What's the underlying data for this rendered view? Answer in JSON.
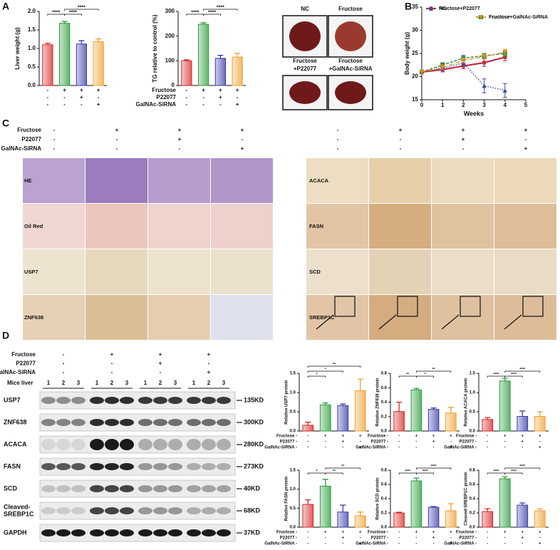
{
  "panel_labels": [
    "A",
    "B",
    "C",
    "D"
  ],
  "chart_data": [
    {
      "type": "bar",
      "y_label": "Liver weight (g)",
      "colors": [
        "#d62728",
        "#2a9a3a",
        "#3a3aa8",
        "#f0a030"
      ],
      "values": [
        1.1,
        1.68,
        1.12,
        1.18
      ],
      "errors": [
        0.04,
        0.05,
        0.09,
        0.08
      ],
      "ylim": [
        0,
        2
      ],
      "yticks": [
        {
          "value": 0,
          "label": "0.0"
        },
        0.5,
        {
          "value": 1,
          "label": "1.0"
        },
        1.5,
        {
          "value": 2,
          "label": "2.0"
        }
      ],
      "significance": [
        {
          "text": "****",
          "between": [
            0,
            1
          ]
        },
        {
          "text": "****",
          "between": [
            1,
            2
          ]
        },
        {
          "text": "****",
          "between": [
            1,
            3
          ]
        }
      ],
      "conditions": [
        {
          "signs": [
            "-",
            "+",
            "+",
            "+"
          ]
        },
        {
          "signs": [
            "-",
            "-",
            "+",
            "-"
          ]
        },
        {
          "signs": [
            "-",
            "-",
            "-",
            "+"
          ]
        }
      ]
    },
    {
      "type": "bar",
      "y_label": "TG relative to control (%)",
      "colors": [
        "#d62728",
        "#2a9a3a",
        "#3a3aa8",
        "#f0a030"
      ],
      "values": [
        100,
        248,
        110,
        115
      ],
      "errors": [
        4,
        6,
        12,
        15
      ],
      "ylim": [
        0,
        300
      ],
      "yticks": [
        0,
        100,
        200,
        300
      ],
      "significance": [
        {
          "text": "****",
          "between": [
            0,
            1
          ]
        },
        {
          "text": "****",
          "between": [
            1,
            2
          ]
        },
        {
          "text": "****",
          "between": [
            1,
            3
          ]
        }
      ],
      "conditions": [
        {
          "label": "Fructose",
          "signs": [
            "-",
            "+",
            "+",
            "+"
          ]
        },
        {
          "label": "P22077",
          "signs": [
            "-",
            "-",
            "+",
            "-"
          ]
        },
        {
          "label": "GalNAc-SiRNA",
          "signs": [
            "-",
            "-",
            "-",
            "+"
          ]
        }
      ]
    },
    {
      "type": "line",
      "y_label": "Body weight (g)",
      "x_label": "Weeks",
      "legend": "top",
      "x": [
        0,
        1,
        2,
        3,
        4
      ],
      "xlim": [
        0,
        5
      ],
      "xticks": [
        0,
        1,
        2,
        3,
        4,
        5
      ],
      "ylim": [
        15,
        35
      ],
      "yticks": [
        15,
        20,
        25,
        30,
        35
      ],
      "series": [
        {
          "name": "NC",
          "color": "#c0304a",
          "values": [
            21,
            21.5,
            22.3,
            23,
            24.2
          ],
          "errors": [
            0.4,
            0.5,
            0.6,
            0.8,
            0.8
          ]
        },
        {
          "name": "Fructose",
          "color": "#2a8a3a",
          "values": [
            21,
            22.5,
            24,
            24.5,
            25
          ],
          "errors": [
            0.4,
            0.5,
            0.6,
            0.5,
            0.6
          ]
        },
        {
          "name": "Fructose+P22077",
          "color": "#3a4aa0",
          "values": [
            21,
            21.8,
            23,
            18,
            17
          ],
          "errors": [
            0.4,
            0.5,
            0.6,
            1.5,
            1.5
          ]
        },
        {
          "name": "Fructose+GalNAc-SiRNA",
          "color": "#e09020",
          "values": [
            21,
            22,
            23.5,
            24.3,
            25.3
          ],
          "errors": [
            0.4,
            0.5,
            0.5,
            0.5,
            0.6
          ]
        }
      ]
    },
    {
      "type": "bar",
      "y_label": "Relative USP7 protein",
      "colors": [
        "#d62728",
        "#2a9a3a",
        "#3a3aa8",
        "#f0a030"
      ],
      "values": [
        0.15,
        0.68,
        0.66,
        1.05
      ],
      "errors": [
        0.08,
        0.05,
        0.04,
        0.3
      ],
      "ylim": [
        0,
        1.5
      ],
      "yticks": [
        {
          "value": 0,
          "label": "0.0"
        },
        0.5,
        {
          "value": 1,
          "label": "1.0"
        },
        1.5
      ],
      "significance": [
        {
          "text": "*",
          "between": [
            0,
            1
          ]
        },
        {
          "text": "*",
          "between": [
            0,
            2
          ]
        },
        {
          "text": "**",
          "between": [
            0,
            3
          ]
        }
      ],
      "conditions": [
        {
          "label": "Fructose -",
          "signs": [
            "-",
            "+",
            "+",
            "+"
          ]
        },
        {
          "label": "P22077 -",
          "signs": [
            "-",
            "-",
            "+",
            "-"
          ]
        },
        {
          "label": "GalNAc-SiRNA -",
          "signs": [
            "-",
            "-",
            "-",
            "+"
          ]
        }
      ]
    },
    {
      "type": "bar",
      "y_label": "Relative ZNF638 protein",
      "colors": [
        "#d62728",
        "#2a9a3a",
        "#3a3aa8",
        "#f0a030"
      ],
      "values": [
        0.27,
        0.57,
        0.3,
        0.25
      ],
      "errors": [
        0.13,
        0.02,
        0.02,
        0.08
      ],
      "ylim": [
        0,
        0.8
      ],
      "yticks": [
        {
          "value": 0,
          "label": "0.0"
        },
        0.2,
        0.4,
        0.6,
        0.8
      ],
      "significance": [
        {
          "text": "**",
          "between": [
            0,
            1
          ]
        },
        {
          "text": "*",
          "between": [
            1,
            2
          ]
        },
        {
          "text": "**",
          "between": [
            1,
            3
          ]
        }
      ],
      "conditions": [
        {
          "label": "Fructose -",
          "signs": [
            "-",
            "+",
            "+",
            "+"
          ]
        },
        {
          "label": "P22077 -",
          "signs": [
            "-",
            "-",
            "+",
            "-"
          ]
        },
        {
          "label": "GalNAc-SiRNA -",
          "signs": [
            "-",
            "-",
            "-",
            "+"
          ]
        }
      ]
    },
    {
      "type": "bar",
      "y_label": "Relative ACACA protein",
      "colors": [
        "#d62728",
        "#2a9a3a",
        "#3a3aa8",
        "#f0a030"
      ],
      "values": [
        0.3,
        1.3,
        0.38,
        0.38
      ],
      "errors": [
        0.05,
        0.07,
        0.14,
        0.12
      ],
      "ylim": [
        0,
        1.5
      ],
      "yticks": [
        {
          "value": 0,
          "label": "0.0"
        },
        0.5,
        {
          "value": 1,
          "label": "1.0"
        },
        1.5
      ],
      "significance": [
        {
          "text": "****",
          "between": [
            0,
            1
          ]
        },
        {
          "text": "****",
          "between": [
            1,
            2
          ]
        },
        {
          "text": "****",
          "between": [
            1,
            3
          ]
        }
      ],
      "conditions": [
        {
          "label": "Fructose -",
          "signs": [
            "-",
            "+",
            "+",
            "+"
          ]
        },
        {
          "label": "P22077 -",
          "signs": [
            "-",
            "-",
            "+",
            "-"
          ]
        },
        {
          "label": "GalNAc-SiRNA -",
          "signs": [
            "-",
            "-",
            "-",
            "+"
          ]
        }
      ]
    },
    {
      "type": "bar",
      "y_label": "Relative FASN protein",
      "colors": [
        "#d62728",
        "#2a9a3a",
        "#3a3aa8",
        "#f0a030"
      ],
      "values": [
        0.6,
        1.08,
        0.4,
        0.3
      ],
      "errors": [
        0.12,
        0.18,
        0.18,
        0.1
      ],
      "ylim": [
        0,
        1.5
      ],
      "yticks": [
        {
          "value": 0,
          "label": "0.0"
        },
        0.5,
        {
          "value": 1,
          "label": "1.0"
        },
        1.5
      ],
      "significance": [
        {
          "text": "*",
          "between": [
            0,
            1
          ]
        },
        {
          "text": "**",
          "between": [
            1,
            2
          ]
        },
        {
          "text": "**",
          "between": [
            1,
            3
          ]
        }
      ],
      "conditions": [
        {
          "label": "Fructose -",
          "signs": [
            "-",
            "+",
            "+",
            "+"
          ]
        },
        {
          "label": "P22077 -",
          "signs": [
            "-",
            "-",
            "+",
            "-"
          ]
        },
        {
          "label": "GalNAc-SiRNA -",
          "signs": [
            "-",
            "-",
            "-",
            "+"
          ]
        }
      ]
    },
    {
      "type": "bar",
      "y_label": "Relative SCD protein",
      "colors": [
        "#d62728",
        "#2a9a3a",
        "#3a3aa8",
        "#f0a030"
      ],
      "values": [
        0.2,
        0.65,
        0.28,
        0.23
      ],
      "errors": [
        0.01,
        0.04,
        0.01,
        0.1
      ],
      "ylim": [
        0,
        0.8
      ],
      "yticks": [
        {
          "value": 0,
          "label": "0.0"
        },
        0.2,
        0.4,
        0.6,
        0.8
      ],
      "significance": [
        {
          "text": "****",
          "between": [
            0,
            1
          ]
        },
        {
          "text": "****",
          "between": [
            1,
            2
          ]
        },
        {
          "text": "****",
          "between": [
            1,
            3
          ]
        }
      ],
      "conditions": [
        {
          "label": "Fructose -",
          "signs": [
            "-",
            "+",
            "+",
            "+"
          ]
        },
        {
          "label": "P22077 -",
          "signs": [
            "-",
            "-",
            "+",
            "-"
          ]
        },
        {
          "label": "GalNAc-SiRNA -",
          "signs": [
            "-",
            "-",
            "-",
            "+"
          ]
        }
      ]
    },
    {
      "type": "bar",
      "y_label": "Cleaved-SREBP1C protein",
      "colors": [
        "#d62728",
        "#2a9a3a",
        "#3a3aa8",
        "#f0a030"
      ],
      "values": [
        0.22,
        0.68,
        0.31,
        0.23
      ],
      "errors": [
        0.04,
        0.03,
        0.03,
        0.03
      ],
      "ylim": [
        0,
        0.8
      ],
      "yticks": [
        {
          "value": 0,
          "label": "0.0"
        },
        0.2,
        0.4,
        0.6,
        0.8
      ],
      "significance": [
        {
          "text": "****",
          "between": [
            0,
            1
          ]
        },
        {
          "text": "****",
          "between": [
            1,
            2
          ]
        },
        {
          "text": "****",
          "between": [
            1,
            3
          ]
        }
      ],
      "conditions": [
        {
          "label": "Fructose -",
          "signs": [
            "-",
            "+",
            "+",
            "+"
          ]
        },
        {
          "label": "P22077 -",
          "signs": [
            "-",
            "-",
            "+",
            "-"
          ]
        },
        {
          "label": "GalNAc-SiRNA -",
          "signs": [
            "-",
            "-",
            "-",
            "+"
          ]
        }
      ]
    }
  ],
  "liver_photos": [
    {
      "label": [
        "NC"
      ]
    },
    {
      "label": [
        "Fructose"
      ]
    },
    {
      "label": [
        "Fructose",
        "+P22077"
      ]
    },
    {
      "label": [
        "Fructose",
        "+GalNAc-SiRNA"
      ]
    }
  ],
  "histology": {
    "conditions": [
      {
        "label": "Fructose",
        "signs": [
          "-",
          "+",
          "+",
          "+"
        ]
      },
      {
        "label": "P22077",
        "signs": [
          "-",
          "-",
          "+",
          "-"
        ]
      },
      {
        "label": "GalNAc-SiRNA",
        "signs": [
          "-",
          "-",
          "-",
          "+"
        ]
      }
    ],
    "right_conditions": [
      {
        "signs": [
          "-",
          "+",
          "+",
          "+"
        ]
      },
      {
        "signs": [
          "-",
          "-",
          "+",
          "-"
        ]
      },
      {
        "signs": [
          "-",
          "-",
          "-",
          "+"
        ]
      }
    ],
    "left_rows": [
      "HE",
      "Oil Red",
      "USP7",
      "ZNF638"
    ],
    "right_rows": [
      "ACACA",
      "FASN",
      "SCD",
      "SREBP1C"
    ]
  },
  "western_blot": {
    "conditions": [
      {
        "label": "Fructose",
        "signs": [
          "-",
          "+",
          "+",
          "+"
        ]
      },
      {
        "label": "P22077",
        "signs": [
          "-",
          "-",
          "+",
          "-"
        ]
      },
      {
        "label": "GalNAc-SiRNA",
        "signs": [
          "-",
          "-",
          "-",
          "+"
        ]
      }
    ],
    "lane_header": "Mice liver",
    "lanes": [
      "1",
      "2",
      "3",
      "1",
      "2",
      "3",
      "1",
      "2",
      "3",
      "1",
      "2",
      "3"
    ],
    "proteins": [
      {
        "name": [
          "USP7"
        ],
        "size": "135KD"
      },
      {
        "name": [
          "ZNF638"
        ],
        "size": "300KD"
      },
      {
        "name": [
          "ACACA"
        ],
        "size": "280KD"
      },
      {
        "name": [
          "FASN"
        ],
        "size": "273KD"
      },
      {
        "name": [
          "SCD"
        ],
        "size": "40KD"
      },
      {
        "name": [
          "Cleaved-",
          "SREBP1C"
        ],
        "size": "68KD"
      },
      {
        "name": [
          "GAPDH"
        ],
        "size": "37KD"
      }
    ]
  }
}
